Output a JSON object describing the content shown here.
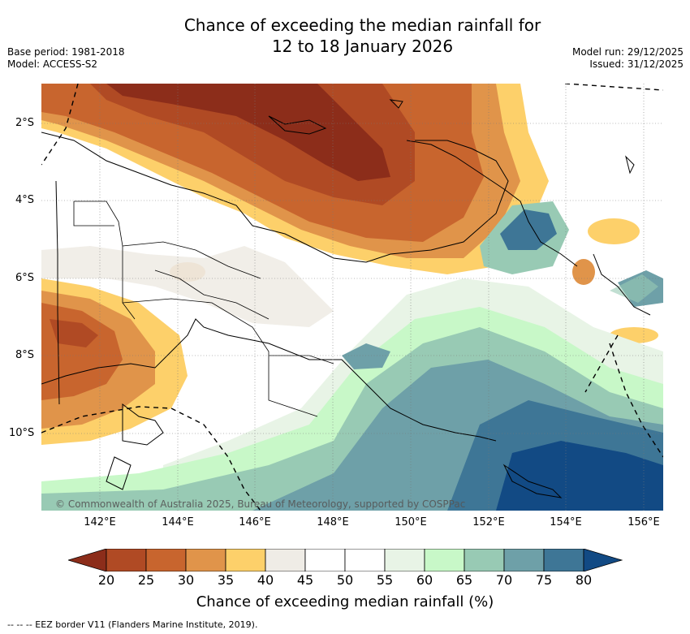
{
  "title_line1": "Chance of exceeding the median rainfall for",
  "title_line2": "12 to 18 January 2026",
  "base_period": "Base period: 1981-2018",
  "model": "Model: ACCESS-S2",
  "model_run": "Model run: 29/12/2025",
  "issued": "Issued: 31/12/2025",
  "copyright": "© Commonwealth of Australia 2025, Bureau of Meteorology, supported by COSPPac",
  "footer": "--  --  -- EEZ border V11 (Flanders Marine Institute, 2019).",
  "lat_labels": [
    "2°S",
    "4°S",
    "6°S",
    "8°S",
    "10°S"
  ],
  "lon_labels": [
    "142°E",
    "144°E",
    "146°E",
    "148°E",
    "150°E",
    "152°E",
    "154°E",
    "156°E"
  ],
  "colorbar": {
    "title": "Chance of exceeding median rainfall (%)",
    "ticks": [
      "20",
      "25",
      "30",
      "35",
      "40",
      "45",
      "50",
      "55",
      "60",
      "65",
      "70",
      "75",
      "80"
    ],
    "colors": [
      "#8c2d1a",
      "#b04a24",
      "#c8652e",
      "#e0944a",
      "#fdd06a",
      "#efece6",
      "#ffffff",
      "#ffffff",
      "#e8f4e6",
      "#c8f8c8",
      "#98cab4",
      "#6ea0a8",
      "#3e7696",
      "#124a84"
    ]
  }
}
